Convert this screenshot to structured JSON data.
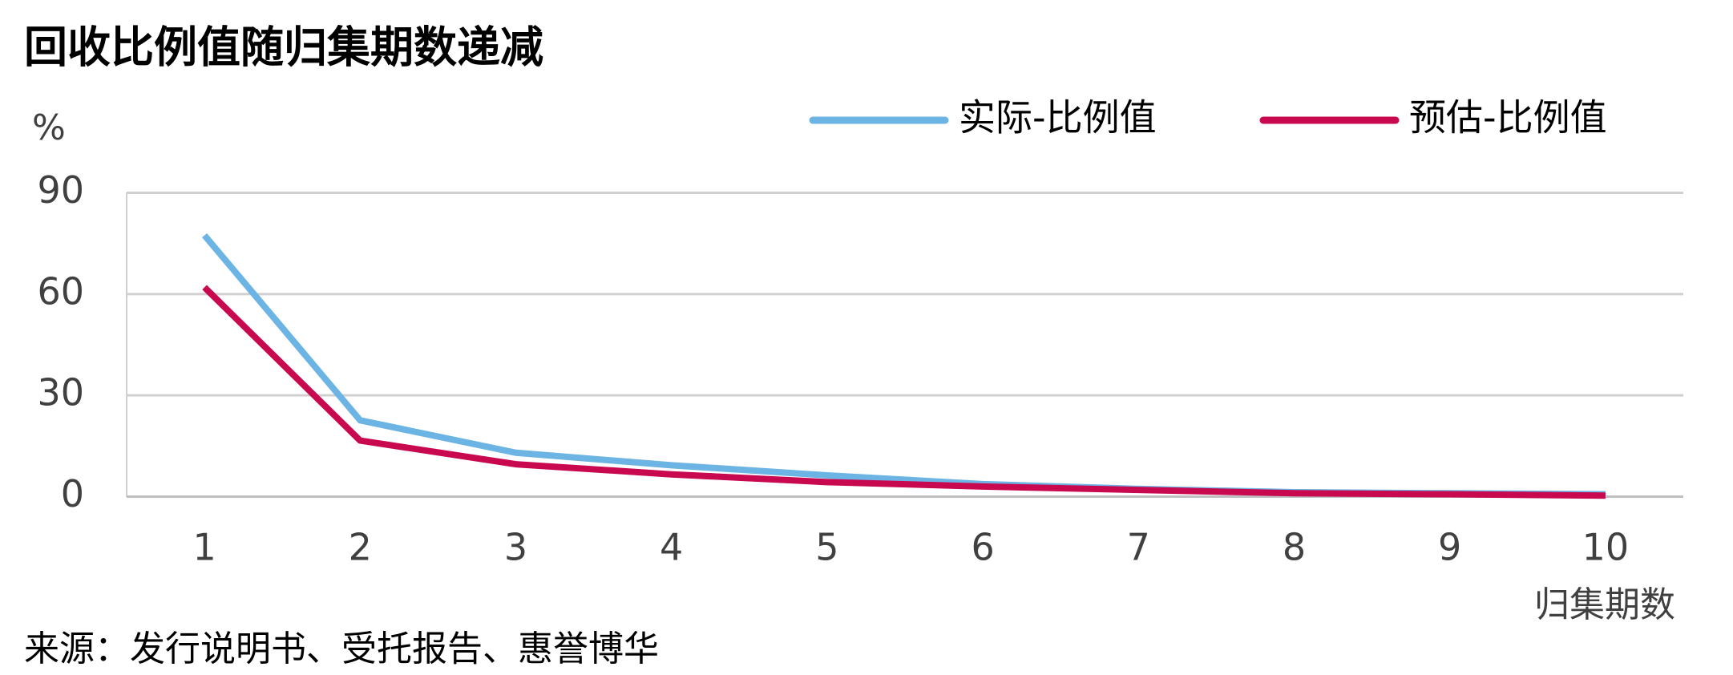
{
  "chart_data": {
    "type": "line",
    "title": "回收比例值随归集期数递减",
    "y_label": "%",
    "x_label": "归集期数",
    "source": "来源：发行说明书、受托报告、惠誉博华",
    "categories": [
      "1",
      "2",
      "3",
      "4",
      "5",
      "6",
      "7",
      "8",
      "9",
      "10"
    ],
    "series": [
      {
        "name": "实际-比例值",
        "color": "#6cb4e4",
        "values": [
          77.4,
          22.6,
          13,
          9.3,
          6.3,
          3.7,
          2.3,
          1.3,
          1,
          0.7
        ]
      },
      {
        "name": "预估-比例值",
        "color": "#c8084f",
        "values": [
          62,
          16.6,
          9.6,
          6.6,
          4.3,
          3,
          2,
          1,
          0.7,
          0.3
        ]
      }
    ],
    "ylim": [
      0,
      90
    ],
    "yticks": [
      0,
      30,
      60,
      90
    ],
    "grid": true,
    "legend": "top-right"
  }
}
